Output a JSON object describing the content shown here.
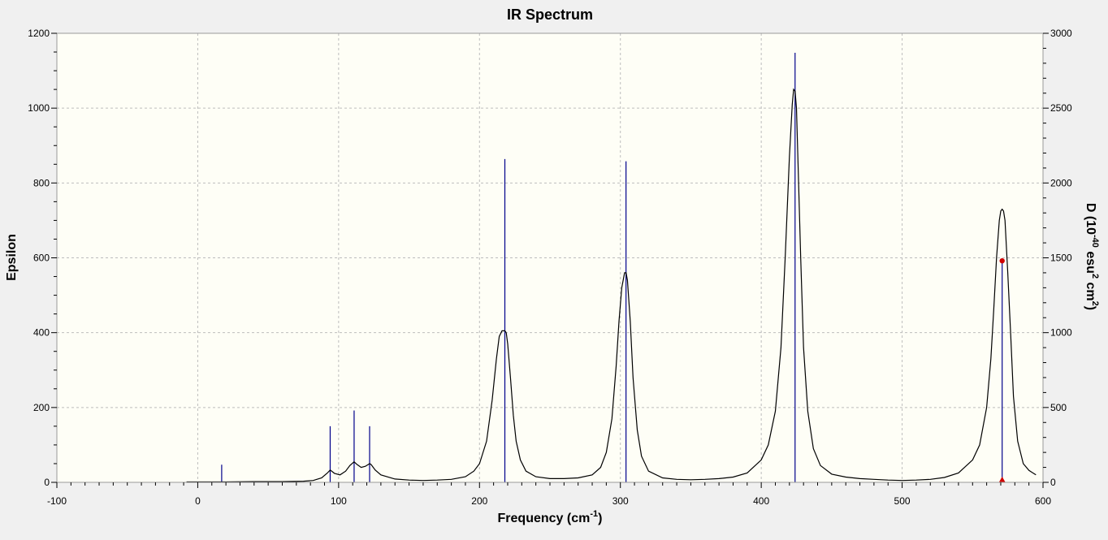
{
  "chart_data": {
    "type": "line",
    "title": "IR Spectrum",
    "xlabel_base": "Frequency (cm",
    "xlabel_sup": "-1",
    "xlabel_close": ")",
    "ylabel": "Epsilon",
    "y2label_parts": [
      "D (10",
      "-40",
      " esu",
      "2",
      " cm",
      "2",
      ")"
    ],
    "xlim": [
      -100,
      600
    ],
    "ylim": [
      0,
      1200
    ],
    "y2lim": [
      0,
      3000
    ],
    "x_ticks": [
      -100,
      0,
      100,
      200,
      300,
      400,
      500,
      600
    ],
    "y_ticks": [
      0,
      200,
      400,
      600,
      800,
      1000,
      1200
    ],
    "y2_ticks": [
      0,
      500,
      1000,
      1500,
      2000,
      2500,
      3000
    ],
    "grid": true,
    "background": "#fefef6",
    "colors": {
      "spectrum": "#000000",
      "sticks": "#00008b",
      "markers": "#d00000"
    },
    "series": [
      {
        "name": "Epsilon",
        "x": [
          -8,
          0,
          20,
          40,
          60,
          75,
          82,
          88,
          92,
          94,
          97,
          101,
          105,
          108,
          111,
          113,
          116,
          119,
          122,
          123,
          126,
          130,
          140,
          150,
          160,
          170,
          180,
          190,
          196,
          200,
          205,
          209,
          212,
          214,
          216,
          218,
          219,
          220,
          222,
          224,
          226,
          229,
          233,
          240,
          250,
          260,
          270,
          280,
          286,
          290,
          294,
          297,
          299,
          301,
          303,
          304,
          305,
          307,
          309,
          312,
          315,
          320,
          330,
          340,
          350,
          360,
          370,
          380,
          390,
          400,
          405,
          410,
          414,
          417,
          420,
          422,
          423,
          424,
          425,
          426,
          428,
          430,
          433,
          437,
          442,
          450,
          460,
          470,
          480,
          490,
          500,
          510,
          520,
          530,
          540,
          550,
          555,
          560,
          563,
          565,
          567,
          569,
          570,
          571,
          572,
          573,
          575,
          577,
          579,
          582,
          586,
          590,
          595
        ],
        "values": [
          1,
          1,
          1,
          2,
          2,
          3,
          5,
          12,
          25,
          33,
          24,
          20,
          30,
          45,
          55,
          48,
          40,
          43,
          50,
          48,
          33,
          20,
          9,
          6,
          5,
          6,
          8,
          15,
          30,
          50,
          110,
          220,
          330,
          390,
          405,
          405,
          400,
          370,
          280,
          180,
          110,
          60,
          30,
          15,
          10,
          10,
          12,
          20,
          40,
          80,
          170,
          310,
          430,
          520,
          560,
          560,
          540,
          430,
          280,
          140,
          70,
          30,
          12,
          8,
          7,
          8,
          10,
          14,
          25,
          60,
          100,
          190,
          360,
          600,
          870,
          1010,
          1050,
          1045,
          1000,
          870,
          600,
          360,
          190,
          90,
          45,
          22,
          14,
          10,
          8,
          6,
          5,
          6,
          8,
          13,
          25,
          60,
          100,
          200,
          330,
          460,
          600,
          700,
          725,
          730,
          725,
          700,
          560,
          400,
          230,
          110,
          50,
          32,
          20
        ]
      },
      {
        "name": "D",
        "sticks": [
          {
            "x": 17,
            "d": 118
          },
          {
            "x": 94,
            "d": 375
          },
          {
            "x": 111,
            "d": 480
          },
          {
            "x": 122,
            "d": 375
          },
          {
            "x": 218,
            "d": 2160
          },
          {
            "x": 304,
            "d": 2145
          },
          {
            "x": 424,
            "d": 2870
          },
          {
            "x": 571,
            "d": 1470
          }
        ]
      }
    ],
    "markers": [
      {
        "x": 571,
        "y": 592
      },
      {
        "x": 571,
        "y": 0
      }
    ]
  }
}
